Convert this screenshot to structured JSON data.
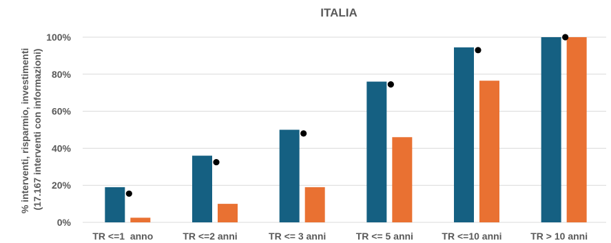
{
  "chart_data": {
    "type": "bar",
    "title": "ITALIA",
    "ylabel_lines": [
      "% interventi, risparmio, investimenti",
      "(17.167 interventi con informazioni)"
    ],
    "xlabel": "",
    "categories": [
      "TR <=1  anno",
      "TR <=2 anni",
      "TR <= 3 anni",
      "TR <= 5 anni",
      "TR <=10 anni",
      "TR > 10 anni"
    ],
    "ylim": [
      0,
      100
    ],
    "yticks": [
      0,
      20,
      40,
      60,
      80,
      100
    ],
    "ytick_labels": [
      "0%",
      "20%",
      "40%",
      "60%",
      "80%",
      "100%"
    ],
    "grid": true,
    "legend": "none",
    "series": [
      {
        "kind": "bar",
        "color": "#156082",
        "values": [
          19,
          36,
          50,
          76,
          94.5,
          100
        ]
      },
      {
        "kind": "bar",
        "color": "#e97132",
        "values": [
          2.5,
          10,
          19,
          46,
          76.5,
          100
        ]
      },
      {
        "kind": "marker",
        "color": "#000000",
        "values": [
          15.5,
          32.5,
          48,
          74.5,
          93,
          100
        ]
      }
    ]
  }
}
